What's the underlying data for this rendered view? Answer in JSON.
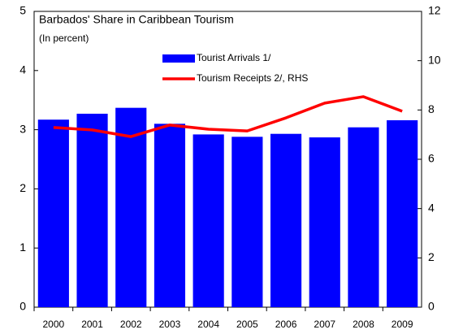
{
  "chart_data": {
    "type": "bar",
    "title": "Barbados' Share in Caribbean Tourism",
    "subtitle": "(In percent)",
    "categories": [
      "2000",
      "2001",
      "2002",
      "2003",
      "2004",
      "2005",
      "2006",
      "2007",
      "2008",
      "2009"
    ],
    "series": [
      {
        "name": "Tourist Arrivals 1/",
        "type": "bar",
        "color": "#0000ff",
        "values": [
          3.17,
          3.27,
          3.37,
          3.1,
          2.92,
          2.88,
          2.93,
          2.87,
          3.04,
          3.16
        ]
      },
      {
        "name": "Tourism Receipts 2/, RHS",
        "type": "line",
        "axis": "y2",
        "color": "#ff0000",
        "values": [
          7.29,
          7.19,
          6.92,
          7.39,
          7.22,
          7.15,
          7.68,
          8.28,
          8.54,
          7.95
        ]
      }
    ],
    "ylim": [
      0,
      5
    ],
    "yticks": [
      0,
      1,
      2,
      3,
      4,
      5
    ],
    "y2lim": [
      0,
      12
    ],
    "y2ticks": [
      0,
      2,
      4,
      6,
      8,
      10,
      12
    ]
  }
}
